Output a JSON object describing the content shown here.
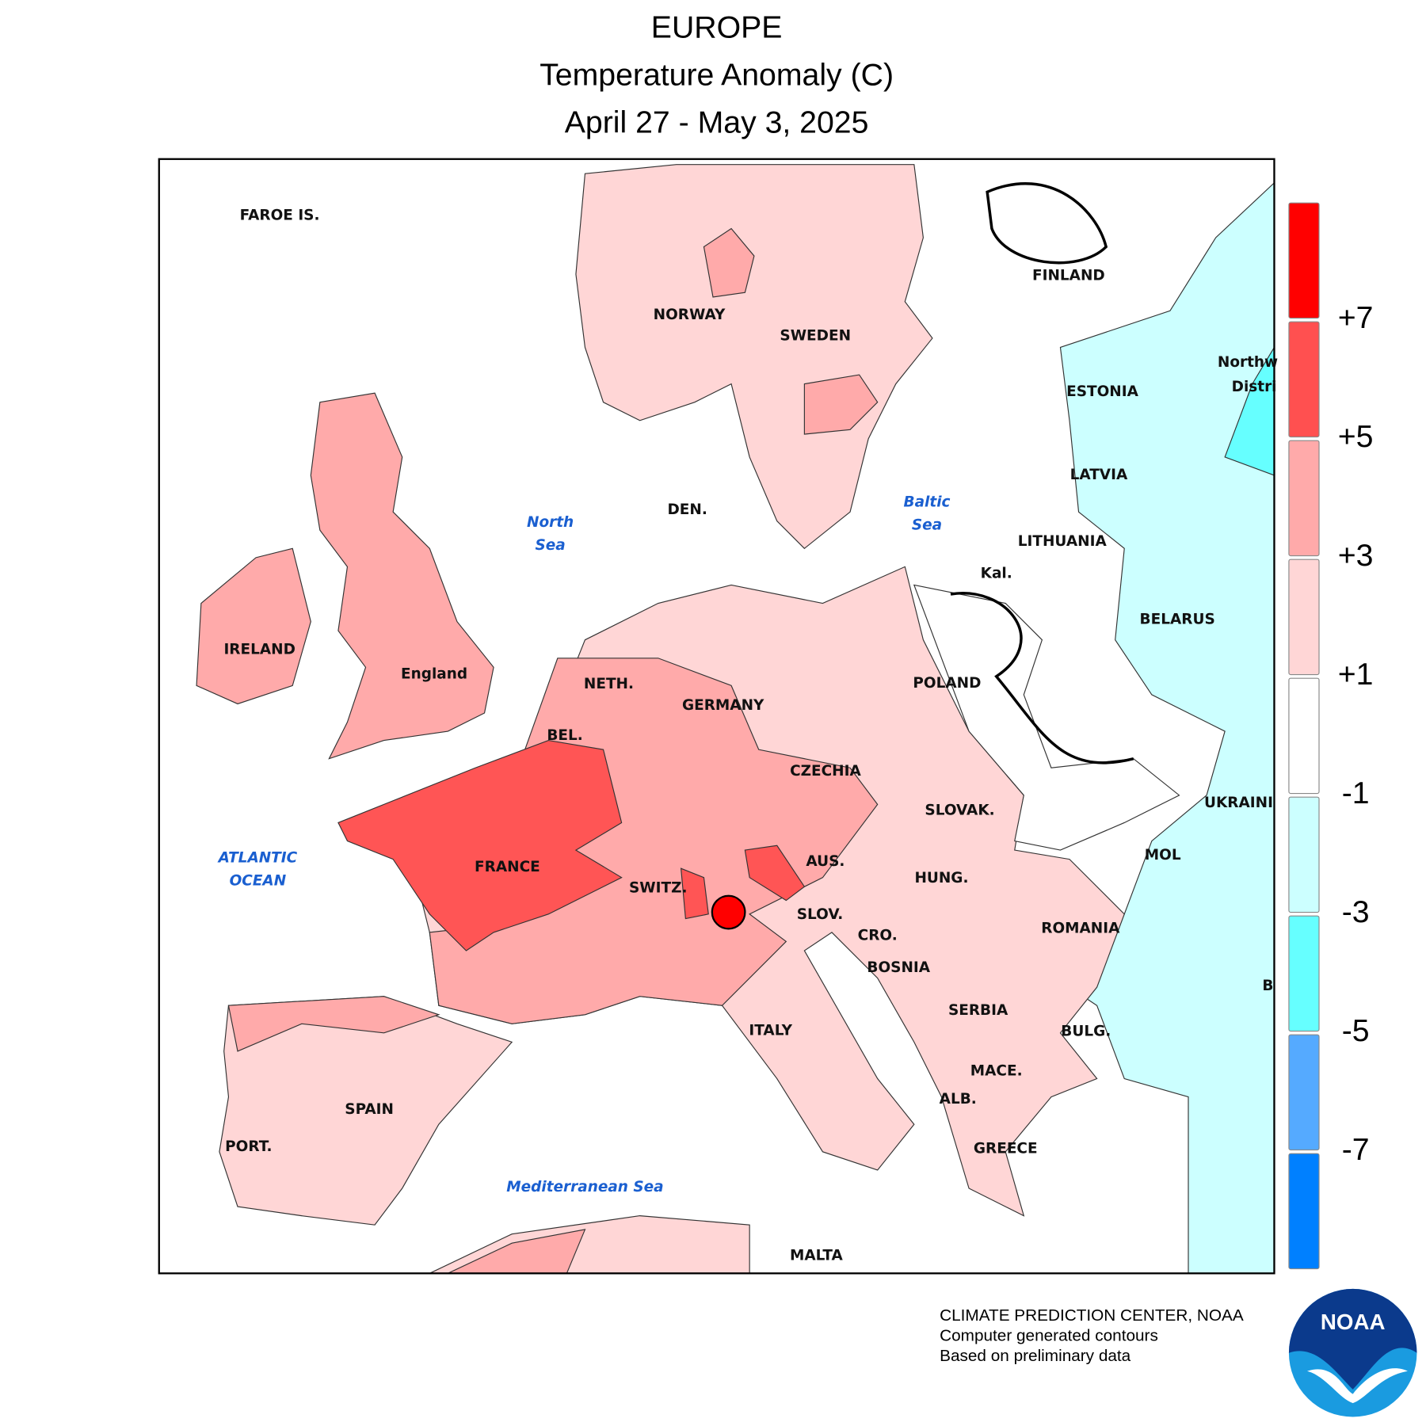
{
  "header": {
    "title": "EUROPE",
    "subtitle": "Temperature Anomaly (C)",
    "dates": "April 27 - May 3, 2025"
  },
  "map": {
    "labels": [
      "FAROE IS.",
      "NORWAY",
      "SWEDEN",
      "FINLAND",
      "ESTONIA",
      "LATVIA",
      "LITHUANIA",
      "Kal.",
      "BELARUS",
      "Northw",
      "Distri",
      "IRELAND",
      "England",
      "NETH.",
      "GERMANY",
      "POLAND",
      "BEL.",
      "CZECHIA",
      "SLOVAK.",
      "UKRAINI",
      "FRANCE",
      "AUS.",
      "HUNG.",
      "MOL",
      "SWITZ.",
      "SLOV.",
      "CRO.",
      "ROMANIA",
      "BOSNIA",
      "SERBIA",
      "ITALY",
      "BULG.",
      "MACE.",
      "ALB.",
      "GREECE",
      "SPAIN",
      "PORT.",
      "MALTA",
      "DEN.",
      "B"
    ],
    "seas": [
      [
        "North",
        "Sea"
      ],
      [
        "Baltic",
        "Sea"
      ],
      [
        "ATLANTIC",
        "OCEAN"
      ],
      [
        "Mediterranean Sea"
      ]
    ]
  },
  "legend": {
    "colors": [
      "#ff0000",
      "#ff5050",
      "#ffaaaa",
      "#ffd6d6",
      "#ffffff",
      "#ccffff",
      "#66ffff",
      "#55aaff",
      "#0080ff"
    ],
    "labels": [
      "+7",
      "+5",
      "+3",
      "+1",
      "-1",
      "-3",
      "-5",
      "-7"
    ]
  },
  "footer": {
    "lines": [
      "CLIMATE PREDICTION CENTER, NOAA",
      "Computer generated contours",
      "Based on preliminary data"
    ]
  },
  "logo": "NOAA"
}
